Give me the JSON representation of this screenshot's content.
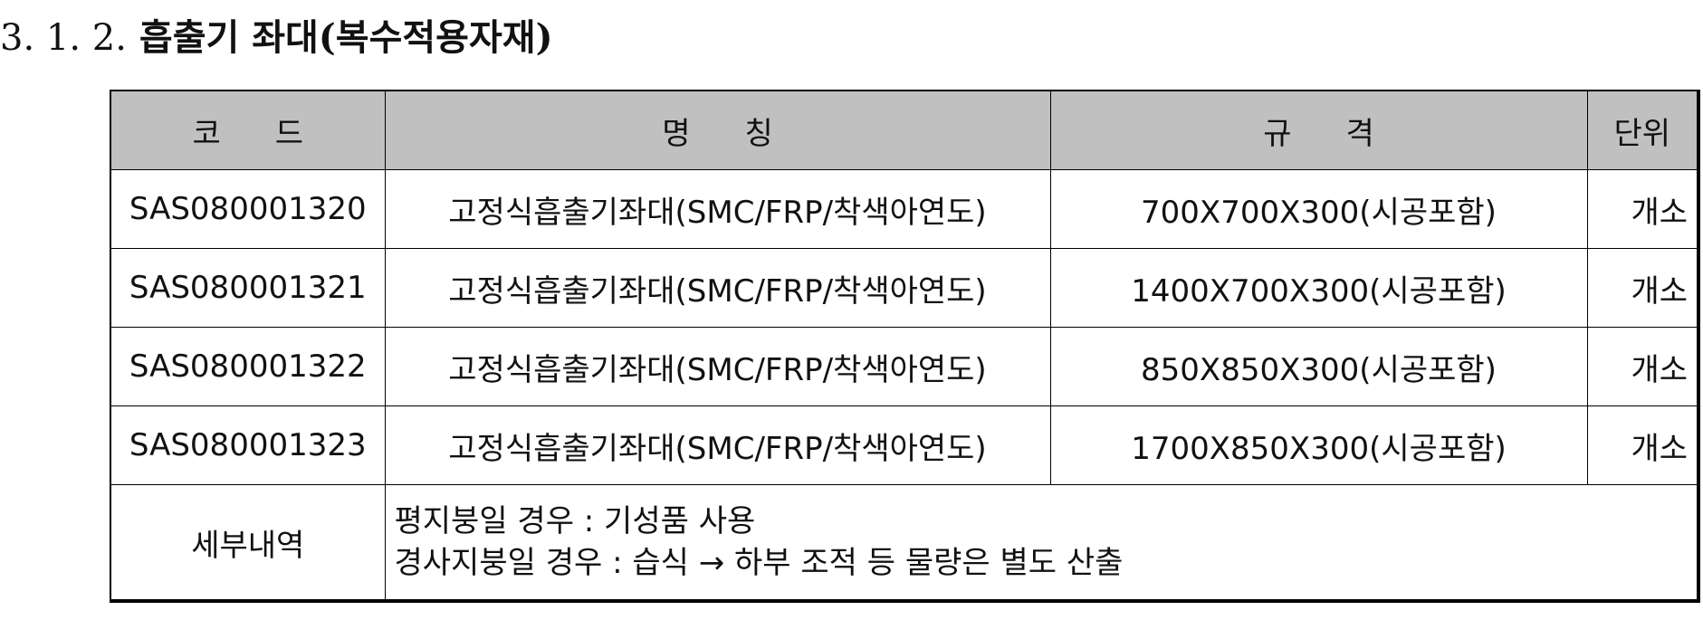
{
  "section": {
    "number": "3. 1. 2.",
    "title": "흡출기 좌대(복수적용자재)"
  },
  "table": {
    "headers": {
      "code": [
        "코",
        "드"
      ],
      "name": [
        "명",
        "칭"
      ],
      "spec": [
        "규",
        "격"
      ],
      "unit": "단위"
    },
    "rows": [
      {
        "code": "SAS080001320",
        "name": "고정식흡출기좌대(SMC/FRP/착색아연도)",
        "spec": "700X700X300(시공포함)",
        "unit": "개소"
      },
      {
        "code": "SAS080001321",
        "name": "고정식흡출기좌대(SMC/FRP/착색아연도)",
        "spec": "1400X700X300(시공포함)",
        "unit": "개소"
      },
      {
        "code": "SAS080001322",
        "name": "고정식흡출기좌대(SMC/FRP/착색아연도)",
        "spec": "850X850X300(시공포함)",
        "unit": "개소"
      },
      {
        "code": "SAS080001323",
        "name": "고정식흡출기좌대(SMC/FRP/착색아연도)",
        "spec": "1700X850X300(시공포함)",
        "unit": "개소"
      }
    ],
    "detail": {
      "label": "세부내역",
      "lines": [
        "평지붕일 경우 : 기성품 사용",
        "경사지붕일 경우 : 습식 → 하부 조적 등 물량은 별도 산출"
      ]
    }
  },
  "colors": {
    "header_bg": "#c0c0c0",
    "border": "#000000"
  }
}
